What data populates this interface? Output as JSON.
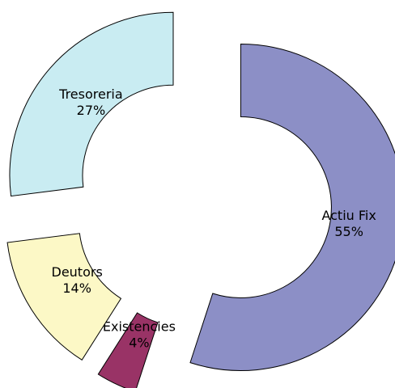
{
  "chart_data": {
    "type": "donut",
    "categories": [
      "Actiu Fix",
      "Existencies",
      "Deutors",
      "Tresoreria"
    ],
    "values": [
      55,
      4,
      14,
      27
    ],
    "value_labels": [
      "55%",
      "4%",
      "14%",
      "27%"
    ],
    "colors": [
      "#8c8fc6",
      "#993366",
      "#fcf8c6",
      "#c9ecf2"
    ]
  }
}
